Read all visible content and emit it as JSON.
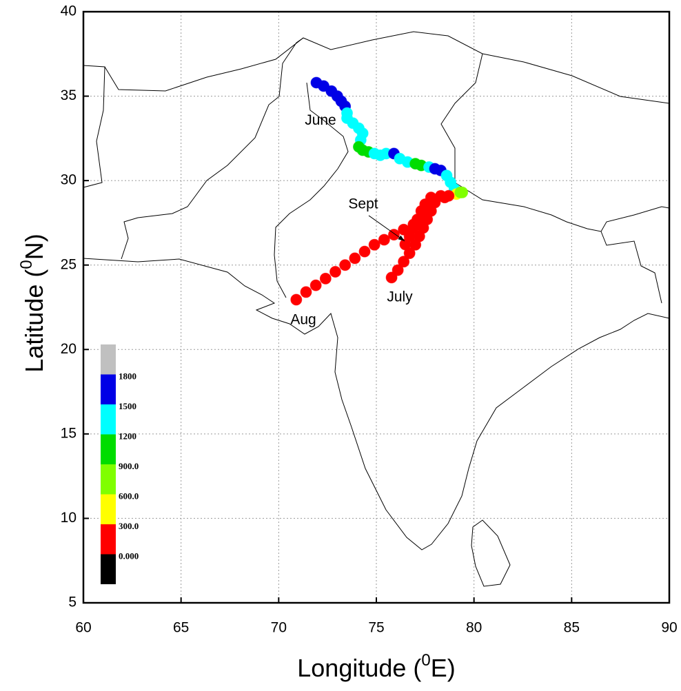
{
  "chart_data": {
    "type": "scatter",
    "xlabel": [
      "Longitude (",
      "0",
      "E)"
    ],
    "ylabel": [
      "Latitude (",
      "0",
      "N)"
    ],
    "xlim": [
      60,
      90
    ],
    "ylim": [
      5,
      40
    ],
    "xticks": [
      60,
      65,
      70,
      75,
      80,
      85,
      90
    ],
    "yticks": [
      5,
      10,
      15,
      20,
      25,
      30,
      35,
      40
    ],
    "grid": true,
    "x": [
      71.93,
      72.3,
      72.7,
      73.0,
      73.2,
      73.4,
      73.5,
      73.5,
      73.8,
      74.1,
      74.3,
      74.2,
      74.1,
      74.3,
      74.6,
      74.9,
      75.2,
      75.5,
      75.9,
      76.2,
      76.6,
      77.0,
      77.3,
      77.7,
      78.0,
      78.3,
      78.6,
      78.8,
      79.0,
      79.1,
      79.3,
      79.4,
      70.9,
      71.4,
      71.9,
      72.4,
      72.9,
      73.4,
      73.9,
      74.4,
      74.9,
      75.4,
      75.9,
      76.4,
      76.9,
      77.3,
      77.6,
      77.9,
      78.3,
      78.7,
      75.78,
      76.1,
      76.4,
      76.7,
      77.0,
      77.2,
      77.4,
      77.6,
      77.8,
      78.0,
      78.5,
      76.48,
      76.7,
      76.9,
      77.1,
      77.3,
      77.5,
      77.8
    ],
    "y": [
      35.8,
      35.6,
      35.3,
      35.0,
      34.7,
      34.4,
      34.0,
      33.7,
      33.4,
      33.1,
      32.8,
      32.4,
      32.0,
      31.8,
      31.7,
      31.6,
      31.5,
      31.6,
      31.6,
      31.3,
      31.1,
      31.0,
      30.9,
      30.8,
      30.7,
      30.6,
      30.3,
      29.9,
      29.5,
      29.2,
      29.3,
      29.3,
      22.95,
      23.4,
      23.8,
      24.2,
      24.6,
      25.0,
      25.4,
      25.8,
      26.2,
      26.5,
      26.8,
      27.1,
      27.4,
      27.8,
      28.3,
      28.8,
      29.1,
      29.1,
      24.26,
      24.7,
      25.2,
      25.7,
      26.2,
      26.7,
      27.2,
      27.7,
      28.2,
      28.7,
      29.0,
      26.22,
      26.7,
      27.2,
      27.7,
      28.2,
      28.6,
      29.0
    ],
    "values": [
      1650,
      1650,
      1650,
      1650,
      1650,
      1600,
      1350,
      1350,
      1350,
      1350,
      1350,
      1300,
      1050,
      1050,
      1050,
      1350,
      1350,
      1350,
      1650,
      1350,
      1350,
      1050,
      1050,
      1350,
      1650,
      1650,
      1350,
      1350,
      1350,
      450,
      750,
      750,
      150,
      150,
      150,
      150,
      150,
      150,
      150,
      150,
      150,
      150,
      150,
      150,
      150,
      150,
      150,
      150,
      150,
      150,
      100,
      100,
      100,
      100,
      100,
      100,
      100,
      100,
      100,
      100,
      100,
      200,
      200,
      200,
      200,
      200,
      200,
      200
    ],
    "colorbar": {
      "levels": [
        {
          "value": 0,
          "label": "0.000"
        },
        {
          "value": 300,
          "label": "300.0"
        },
        {
          "value": 600,
          "label": "600.0"
        },
        {
          "value": 900,
          "label": "900.0"
        },
        1200,
        1500,
        1800
      ],
      "colors": [
        "#000000",
        "#ff0000",
        "#ffff00",
        "#80ff00",
        "#00dd00",
        "#00ffff",
        "#0000e6",
        "#c0c0c0"
      ]
    },
    "annotations": [
      {
        "text": "June",
        "x": 72.14,
        "y": 33.54
      },
      {
        "text": "Sept",
        "x": 74.33,
        "y": 28.58,
        "arrow_to": [
          76.45,
          26.42
        ]
      },
      {
        "text": "July",
        "x": 76.2,
        "y": 23.07
      },
      {
        "text": "Aug",
        "x": 71.26,
        "y": 21.73
      }
    ]
  }
}
